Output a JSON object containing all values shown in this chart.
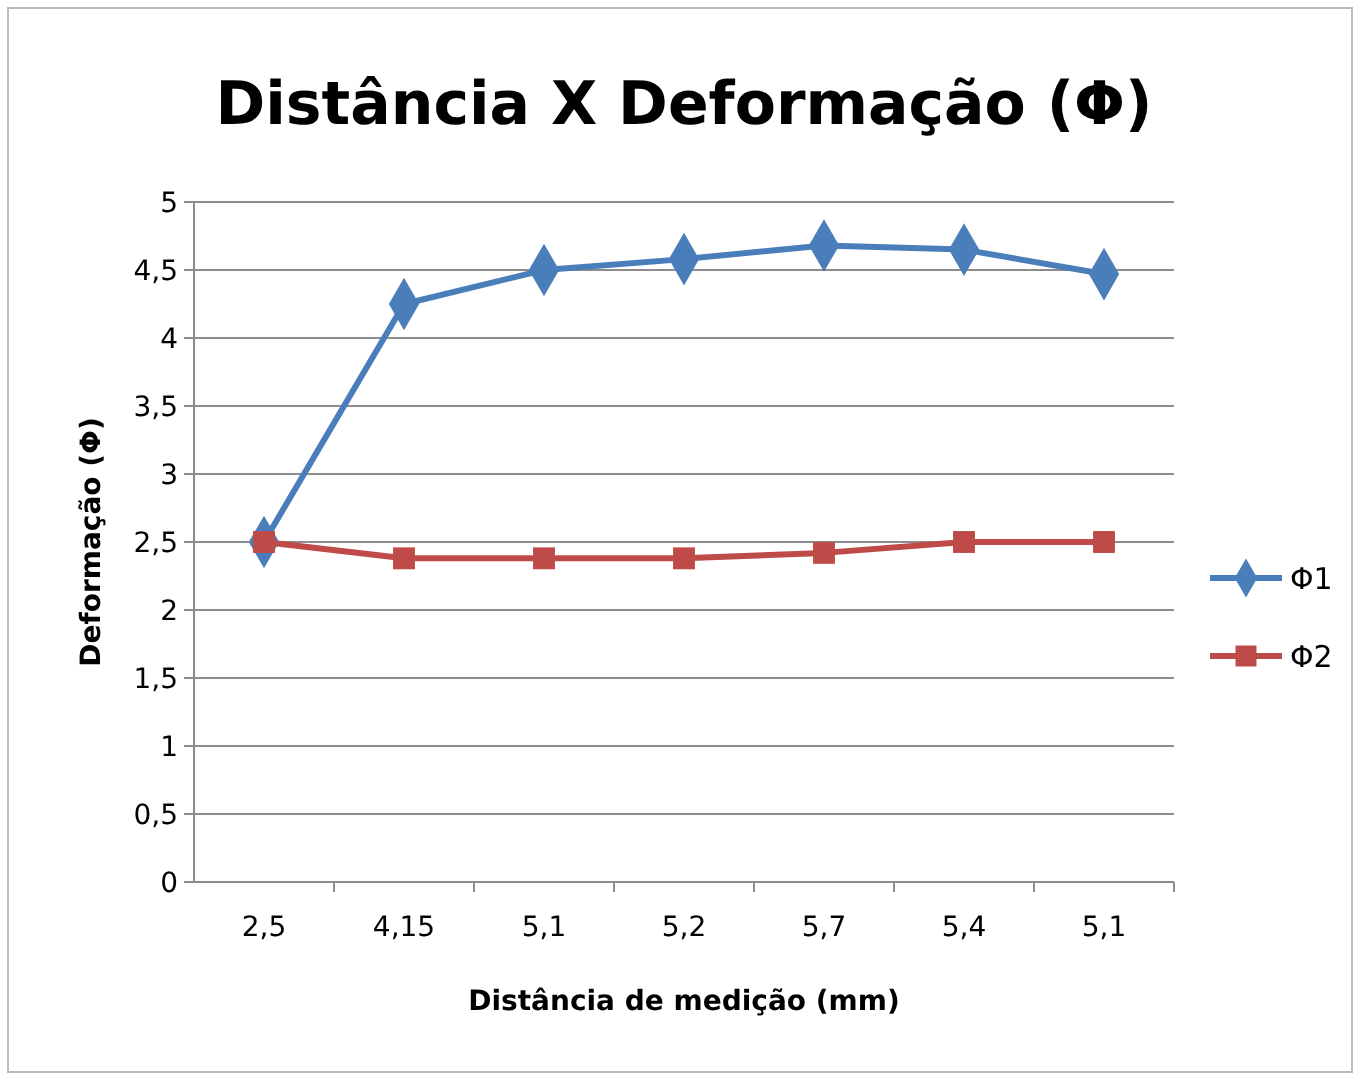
{
  "chart_data": {
    "type": "line",
    "title": "Distância X Deformação (Φ)",
    "xlabel": "Distância de medição (mm)",
    "ylabel": "Deformação (Φ)",
    "categories": [
      "2,5",
      "4,15",
      "5,1",
      "5,2",
      "5,7",
      "5,4",
      "5,1"
    ],
    "series": [
      {
        "name": "Φ1",
        "color": "#4a7ebb",
        "marker": "diamond",
        "values": [
          2.5,
          4.25,
          4.5,
          4.58,
          4.68,
          4.65,
          4.47
        ]
      },
      {
        "name": "Φ2",
        "color": "#be4b48",
        "marker": "square",
        "values": [
          2.5,
          2.38,
          2.38,
          2.38,
          2.42,
          2.5,
          2.5
        ]
      }
    ],
    "ylim": [
      0,
      5
    ],
    "yticks": [
      {
        "value": 0,
        "label": "0"
      },
      {
        "value": 0.5,
        "label": "0,5"
      },
      {
        "value": 1,
        "label": "1"
      },
      {
        "value": 1.5,
        "label": "1,5"
      },
      {
        "value": 2,
        "label": "2"
      },
      {
        "value": 2.5,
        "label": "2,5"
      },
      {
        "value": 3,
        "label": "3"
      },
      {
        "value": 3.5,
        "label": "3,5"
      },
      {
        "value": 4,
        "label": "4"
      },
      {
        "value": 4.5,
        "label": "4,5"
      },
      {
        "value": 5,
        "label": "5"
      }
    ],
    "grid": "y",
    "legend": "right"
  }
}
